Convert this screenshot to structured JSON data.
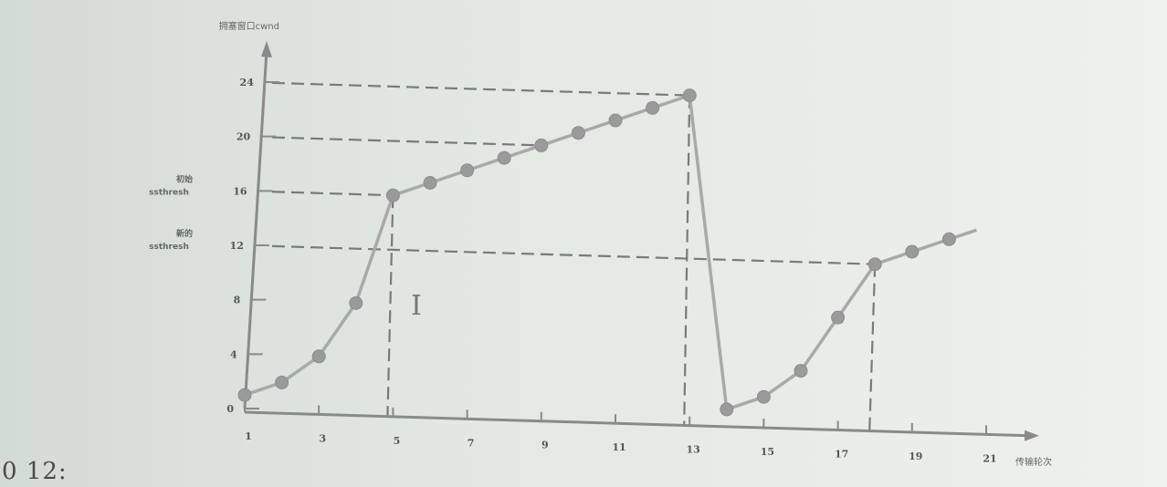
{
  "chart_data": {
    "type": "line",
    "ylabel": "拥塞窗口cwnd",
    "xlabel": "传输轮次",
    "x_ticks": [
      1,
      3,
      5,
      7,
      9,
      11,
      13,
      15,
      17,
      19,
      21
    ],
    "y_ticks": [
      0,
      4,
      8,
      12,
      16,
      20,
      24
    ],
    "annotations": [
      {
        "label": "ssthresh",
        "cn": "初始",
        "y": 16
      },
      {
        "label": "ssthresh",
        "cn": "新的",
        "y": 12
      }
    ],
    "series": [
      {
        "x": [
          1,
          2,
          3,
          4,
          5,
          6,
          7,
          8,
          9,
          10,
          11,
          12,
          13,
          14,
          15,
          16,
          17,
          18,
          19,
          20
        ],
        "y": [
          1,
          2,
          4,
          8,
          16,
          17,
          18,
          19,
          20,
          21,
          22,
          23,
          24,
          1,
          2,
          4,
          8,
          12,
          13,
          14
        ]
      }
    ],
    "xlim": [
      1,
      21
    ],
    "ylim": [
      0,
      24
    ]
  },
  "footer_text": "0 12:"
}
